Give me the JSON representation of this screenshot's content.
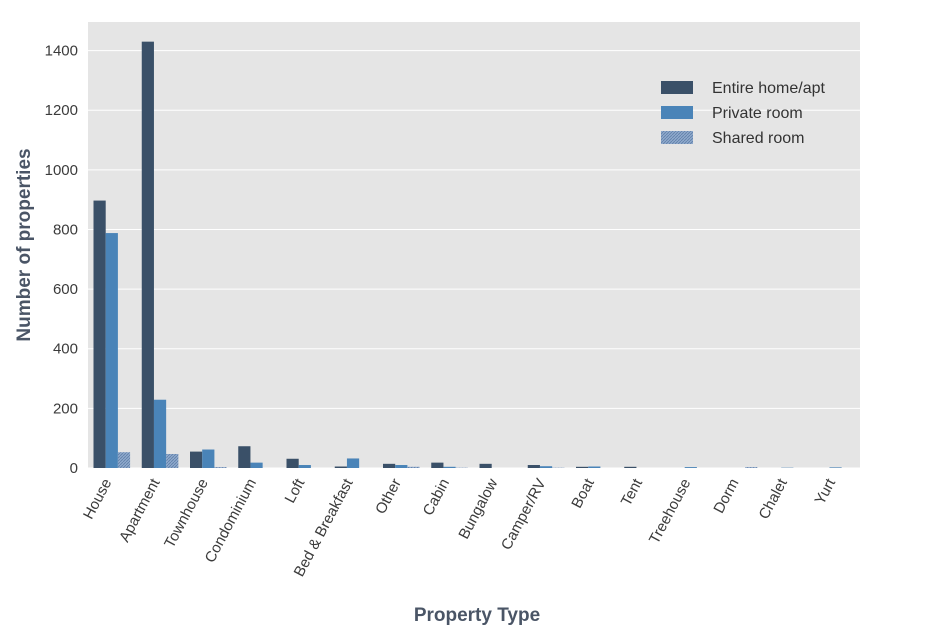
{
  "chart_data": {
    "type": "bar",
    "title": "",
    "xlabel": "Property Type",
    "ylabel": "Number of properties",
    "ylim": [
      0,
      1500
    ],
    "yticks": [
      0,
      200,
      400,
      600,
      800,
      1000,
      1200,
      1400
    ],
    "grid": true,
    "legend_position": "top-right",
    "categories": [
      "House",
      "Apartment",
      "Townhouse",
      "Condominium",
      "Loft",
      "Bed & Breakfast",
      "Other",
      "Cabin",
      "Bungalow",
      "Camper/RV",
      "Boat",
      "Tent",
      "Treehouse",
      "Dorm",
      "Chalet",
      "Yurt"
    ],
    "series": [
      {
        "name": "Entire home/apt",
        "color": "#3a5068",
        "values": [
          897,
          1430,
          55,
          73,
          31,
          5,
          14,
          18,
          14,
          10,
          4,
          4,
          0,
          0,
          0,
          0
        ]
      },
      {
        "name": "Private room",
        "color": "#4a84b8",
        "values": [
          788,
          229,
          62,
          18,
          10,
          32,
          10,
          4,
          0,
          6,
          5,
          0,
          3,
          0,
          1,
          2
        ]
      },
      {
        "name": "Shared room",
        "color": "#7b9cc4",
        "values": [
          53,
          47,
          3,
          0,
          0,
          0,
          4,
          1,
          0,
          1,
          0,
          0,
          0,
          3,
          0,
          0
        ]
      }
    ]
  }
}
